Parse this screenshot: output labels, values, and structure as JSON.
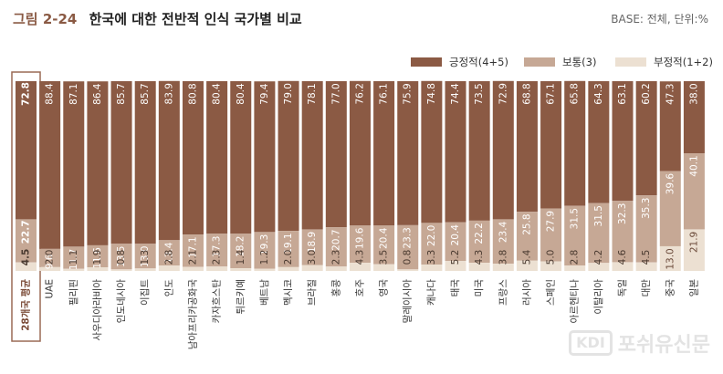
{
  "header": {
    "figure_number": "그림 2-24",
    "title": "한국에 대한 전반적 인식 국가별 비교",
    "base_note": "BASE: 전체, 단위:%"
  },
  "colors": {
    "positive": "#8b5a44",
    "neutral": "#c6a895",
    "negative": "#ece0d2",
    "highlight_border": "#9a6a55"
  },
  "legend": [
    {
      "label": "긍정적(4+5)",
      "color": "#8b5a44"
    },
    {
      "label": "보통(3)",
      "color": "#c6a895"
    },
    {
      "label": "부정적(1+2)",
      "color": "#ece0d2"
    }
  ],
  "watermark": {
    "logo": "KDI",
    "text": "포쉬유신문"
  },
  "chart_data": {
    "type": "bar",
    "stacked": true,
    "orientation": "vertical",
    "unit": "%",
    "ylim": [
      0,
      100
    ],
    "categories": [
      "28개국 평균",
      "UAE",
      "필리핀",
      "사우디아라비아",
      "인도네시아",
      "이집트",
      "인도",
      "남아프리카공화국",
      "카자흐스탄",
      "튀르키예",
      "베트남",
      "멕시코",
      "브라질",
      "홍콩",
      "호주",
      "영국",
      "말레이시아",
      "캐나다",
      "태국",
      "미국",
      "프랑스",
      "러시아",
      "스페인",
      "아르헨티나",
      "이탈리아",
      "독일",
      "대만",
      "중국",
      "일본"
    ],
    "highlight_category": "28개국 평균",
    "series": [
      {
        "name": "부정적(1+2)",
        "values": [
          4.5,
          2.0,
          1.1,
          1.9,
          0.8,
          1.3,
          2.8,
          2.1,
          2.3,
          1.4,
          1.2,
          2.0,
          3.0,
          2.3,
          4.3,
          3.5,
          0.8,
          3.3,
          5.2,
          4.3,
          3.8,
          5.4,
          5.0,
          2.8,
          4.2,
          4.6,
          4.5,
          13.0,
          21.9
        ]
      },
      {
        "name": "보통(3)",
        "values": [
          22.7,
          9.6,
          11.7,
          11.6,
          13.5,
          13.0,
          13.4,
          17.1,
          17.3,
          18.2,
          19.3,
          19.1,
          18.9,
          20.7,
          19.6,
          20.4,
          23.3,
          22.0,
          20.4,
          22.2,
          23.4,
          25.8,
          27.9,
          31.5,
          31.5,
          32.3,
          35.3,
          39.6,
          40.1
        ]
      },
      {
        "name": "긍정적(4+5)",
        "values": [
          72.8,
          88.4,
          87.1,
          86.4,
          85.7,
          85.7,
          83.9,
          80.8,
          80.4,
          80.4,
          79.4,
          79.0,
          78.1,
          77.0,
          76.2,
          76.1,
          75.9,
          74.8,
          74.4,
          73.5,
          72.9,
          68.8,
          67.1,
          65.8,
          64.3,
          63.1,
          60.2,
          47.3,
          38.0
        ]
      }
    ]
  }
}
